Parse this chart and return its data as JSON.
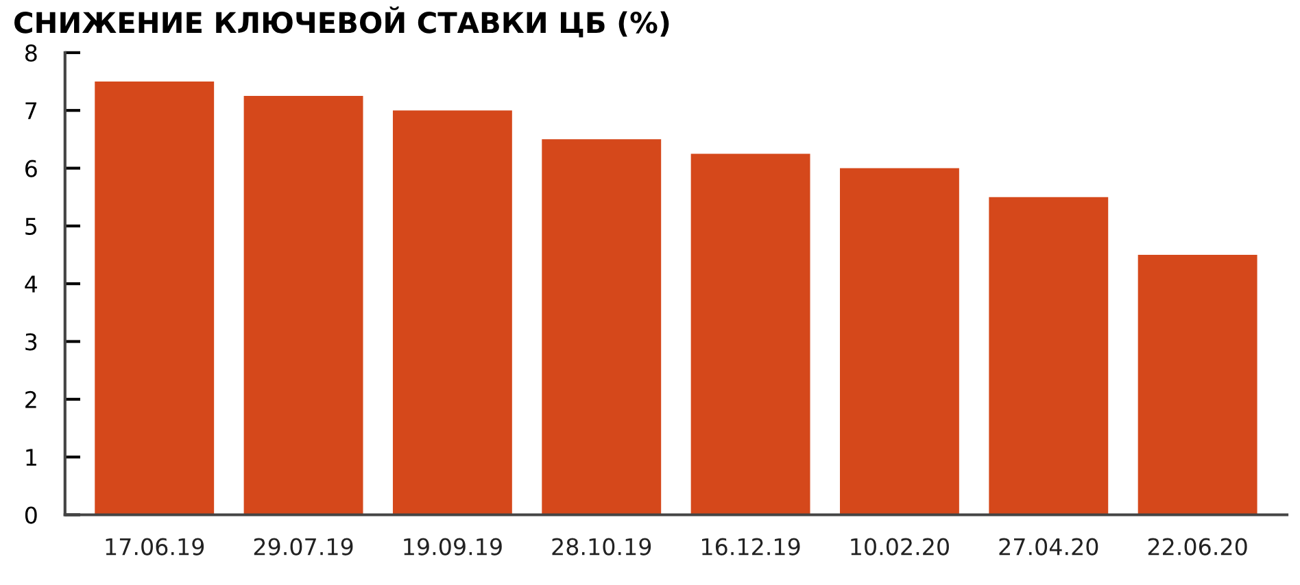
{
  "chart_data": {
    "type": "bar",
    "title": "СНИЖЕНИЕ КЛЮЧЕВОЙ СТАВКИ ЦБ (%)",
    "categories": [
      "17.06.19",
      "29.07.19",
      "19.09.19",
      "28.10.19",
      "16.12.19",
      "10.02.20",
      "27.04.20",
      "22.06.20"
    ],
    "values": [
      7.5,
      7.25,
      7.0,
      6.5,
      6.25,
      6.0,
      5.5,
      4.5
    ],
    "color": "#d5481b",
    "ylim": [
      0,
      8
    ],
    "yticks": [
      0,
      1,
      2,
      3,
      4,
      5,
      6,
      7,
      8
    ],
    "grid": false,
    "legend": false
  }
}
